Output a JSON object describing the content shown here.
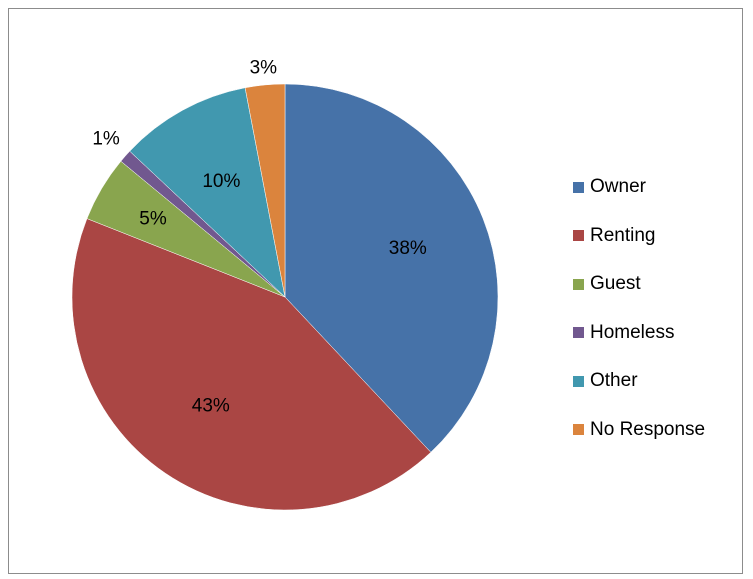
{
  "chart_data": {
    "type": "pie",
    "categories": [
      "Owner",
      "Renting",
      "Guest",
      "Homeless",
      "Other",
      "No Response"
    ],
    "values": [
      38,
      43,
      5,
      1,
      10,
      3
    ],
    "data_labels": [
      "38%",
      "43%",
      "5%",
      "1%",
      "10%",
      "3%"
    ],
    "colors": [
      "#4672A8",
      "#AA4644",
      "#89A54E",
      "#71588F",
      "#4198AF",
      "#DB843D"
    ],
    "start_angle_deg": 0,
    "direction": "clockwise",
    "legend_position": "right",
    "title": ""
  }
}
